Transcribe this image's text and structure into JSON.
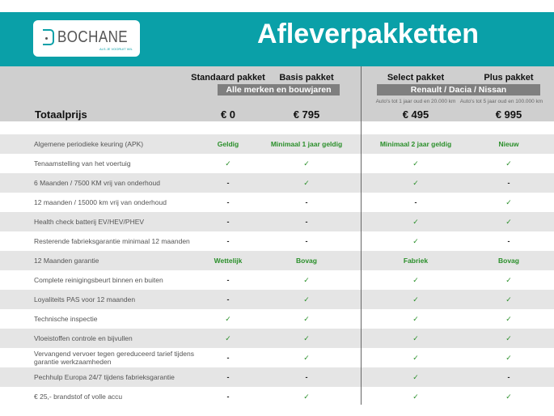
{
  "header": {
    "logo_text": "BOCHANE",
    "logo_tagline": "ALS JE VOORUIT WIL",
    "title": "Afleverpakketten",
    "brand_color": "#0aa0a8"
  },
  "packages": [
    {
      "name": "Standaard pakket",
      "price": "€ 0"
    },
    {
      "name": "Basis pakket",
      "price": "€ 795"
    },
    {
      "name": "Select pakket",
      "price": "€ 495",
      "note": "Auto's tot 1 jaar oud en 20.000 km"
    },
    {
      "name": "Plus pakket",
      "price": "€ 995",
      "note": "Auto's tot 5 jaar oud en 100.000 km"
    }
  ],
  "groups": {
    "left": "Alle merken en bouwjaren",
    "right": "Renault / Dacia / Nissan"
  },
  "total_label": "Totaalprijs",
  "rows": [
    {
      "label": "Algemene periodieke keuring (APK)",
      "values": [
        "Geldig",
        "Minimaal 1 jaar geldig",
        "Minimaal 2 jaar geldig",
        "Nieuw"
      ]
    },
    {
      "label": "Tenaamstelling van het voertuig",
      "values": [
        "✓",
        "✓",
        "✓",
        "✓"
      ]
    },
    {
      "label": "6 Maanden / 7500 KM vrij van onderhoud",
      "values": [
        "-",
        "✓",
        "✓",
        "-"
      ]
    },
    {
      "label": "12 maanden / 15000 km vrij van onderhoud",
      "values": [
        "-",
        "-",
        "-",
        "✓"
      ]
    },
    {
      "label": "Health check batterij EV/HEV/PHEV",
      "values": [
        "-",
        "-",
        "✓",
        "✓"
      ]
    },
    {
      "label": "Resterende fabrieksgarantie minimaal 12 maanden",
      "values": [
        "-",
        "-",
        "✓",
        "-"
      ]
    },
    {
      "label": "12 Maanden  garantie",
      "values": [
        "Wettelijk",
        "Bovag",
        "Fabriek",
        "Bovag"
      ]
    },
    {
      "label": "Complete reinigingsbeurt binnen en buiten",
      "values": [
        "-",
        "✓",
        "✓",
        "✓"
      ]
    },
    {
      "label": "Loyaliteits PAS voor 12 maanden",
      "values": [
        "-",
        "✓",
        "✓",
        "✓"
      ]
    },
    {
      "label": "Technische inspectie",
      "values": [
        "✓",
        "✓",
        "✓",
        "✓"
      ]
    },
    {
      "label": "Vloeistoffen controle en bijvullen",
      "values": [
        "✓",
        "✓",
        "✓",
        "✓"
      ]
    },
    {
      "label": "Vervangend vervoer tegen gereduceerd tarief tijdens garantie werkzaamheden",
      "values": [
        "-",
        "✓",
        "✓",
        "✓"
      ]
    },
    {
      "label": "Pechhulp Europa 24/7 tijdens fabrieksgarantie",
      "values": [
        "-",
        "-",
        "✓",
        "-"
      ]
    },
    {
      "label": "€ 25,- brandstof of  volle accu",
      "values": [
        "-",
        "✓",
        "✓",
        "✓"
      ]
    }
  ]
}
